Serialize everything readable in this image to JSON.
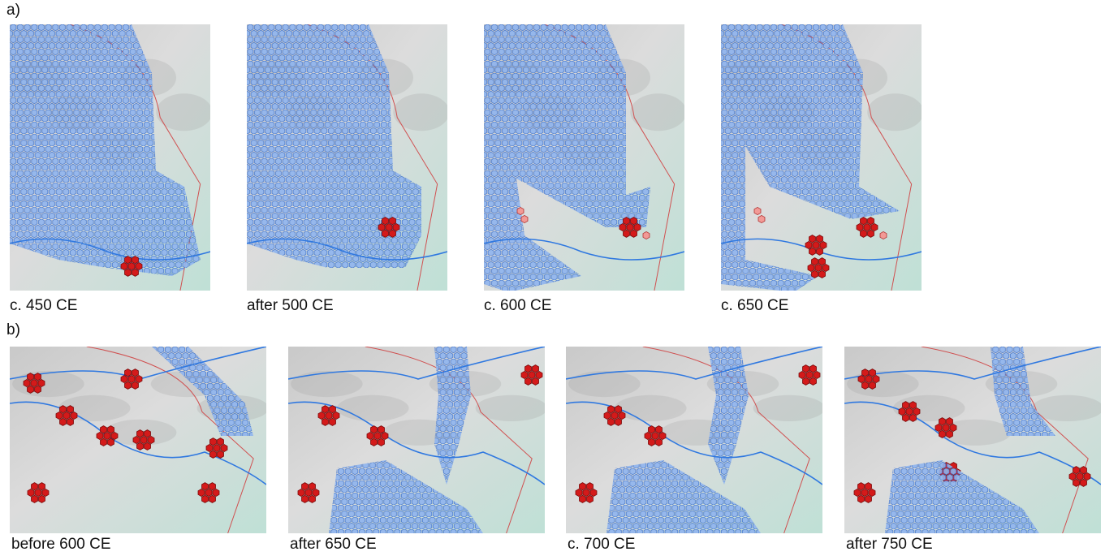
{
  "figure": {
    "row_a": {
      "label": "a)",
      "panels": [
        {
          "caption": "c. 450 CE"
        },
        {
          "caption": "after 500 CE"
        },
        {
          "caption": "c. 600 CE"
        },
        {
          "caption": "c. 650 CE"
        }
      ]
    },
    "row_b": {
      "label": "b)",
      "panels": [
        {
          "caption": "before 600 CE"
        },
        {
          "caption": "after 650 CE"
        },
        {
          "caption": "c. 700 CE"
        },
        {
          "caption": "after 750 CE"
        }
      ]
    }
  }
}
